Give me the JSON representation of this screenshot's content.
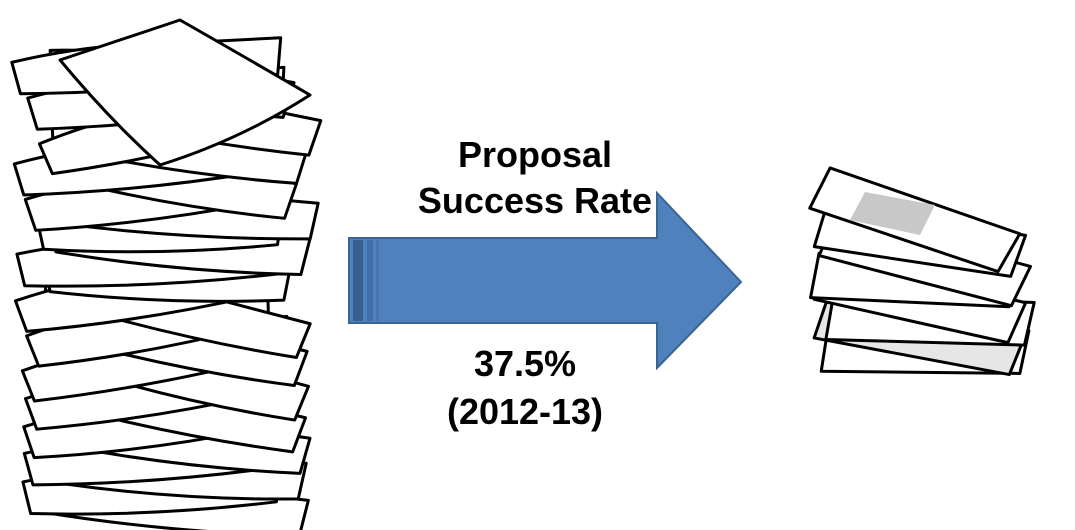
{
  "heading": {
    "line1": "Proposal",
    "line2": "Success Rate"
  },
  "result": {
    "value": "37.5%",
    "period": "(2012-13)"
  },
  "colors": {
    "arrow_fill": "#4f81bd",
    "arrow_stroke": "#3a6494",
    "arrow_stripe": "#36618f",
    "paper_stroke": "#000000",
    "paper_fill": "#ffffff",
    "paper_shade": "#c8c8c8"
  },
  "icons": {
    "left": "tall-paper-stack-icon",
    "arrow": "right-arrow-icon",
    "right": "short-paper-stack-icon"
  }
}
